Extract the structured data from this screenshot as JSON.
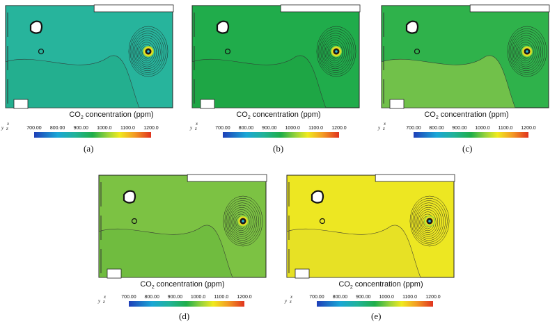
{
  "colorbar": {
    "title_pre": "CO",
    "title_sub": "2",
    "title_post": " concentration (ppm)",
    "ticks": [
      "700.00",
      "800.00",
      "900.00",
      "1000.0",
      "1100.0",
      "1200.0"
    ]
  },
  "axes_triad": {
    "x": "x",
    "y": "y",
    "z": "z"
  },
  "panels": [
    {
      "caption": "(a)",
      "fill_color": "#27b49c",
      "low_color": "#23af8e"
    },
    {
      "caption": "(b)",
      "fill_color": "#20ac4b",
      "low_color": "#1ea645"
    },
    {
      "caption": "(c)",
      "fill_color": "#2fb24b",
      "low_color": "#79c34a"
    },
    {
      "caption": "(d)",
      "fill_color": "#7cc243",
      "low_color": "#6fbc3f"
    },
    {
      "caption": "(e)",
      "fill_color": "#ede722",
      "low_color": "#e7e126"
    }
  ]
}
